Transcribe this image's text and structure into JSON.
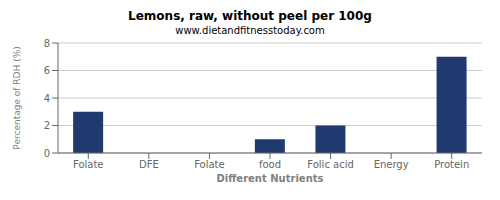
{
  "chart_data": {
    "type": "bar",
    "title": "Lemons, raw, without peel per 100g",
    "subtitle": "www.dietandfitnesstoday.com",
    "xlabel": "Different Nutrients",
    "ylabel": "Percentage of RDH (%)",
    "categories": [
      "Folate",
      "DFE",
      "Folate",
      "food",
      "Folic acid",
      "Energy",
      "Protein"
    ],
    "values": [
      3,
      0,
      0,
      1,
      2,
      0,
      7
    ],
    "color": "#1e3a6e",
    "ylim": [
      0,
      8
    ],
    "yticks": [
      0,
      2,
      4,
      6,
      8
    ],
    "grid": true
  }
}
